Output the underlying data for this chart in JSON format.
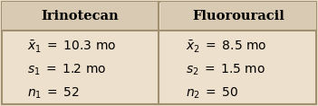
{
  "header_bg": "#d9cab4",
  "body_bg": "#ede0cc",
  "border_color": "#a09070",
  "header_left": "Irinotecan",
  "header_right": "Fluorouracil",
  "left_lines": [
    "$\\bar{x}_1\\; =\\; 10.3 \\text{ mo}$",
    "$s_1\\; =\\; 1.2 \\text{ mo}$",
    "$n_1\\; =\\; 52$"
  ],
  "right_lines": [
    "$\\bar{x}_2\\; =\\; 8.5 \\text{ mo}$",
    "$s_2\\; =\\; 1.5 \\text{ mo}$",
    "$n_2\\; =\\; 50$"
  ],
  "header_fontsize": 10.5,
  "body_fontsize": 10.0,
  "fig_width": 3.51,
  "fig_height": 1.18,
  "dpi": 100
}
